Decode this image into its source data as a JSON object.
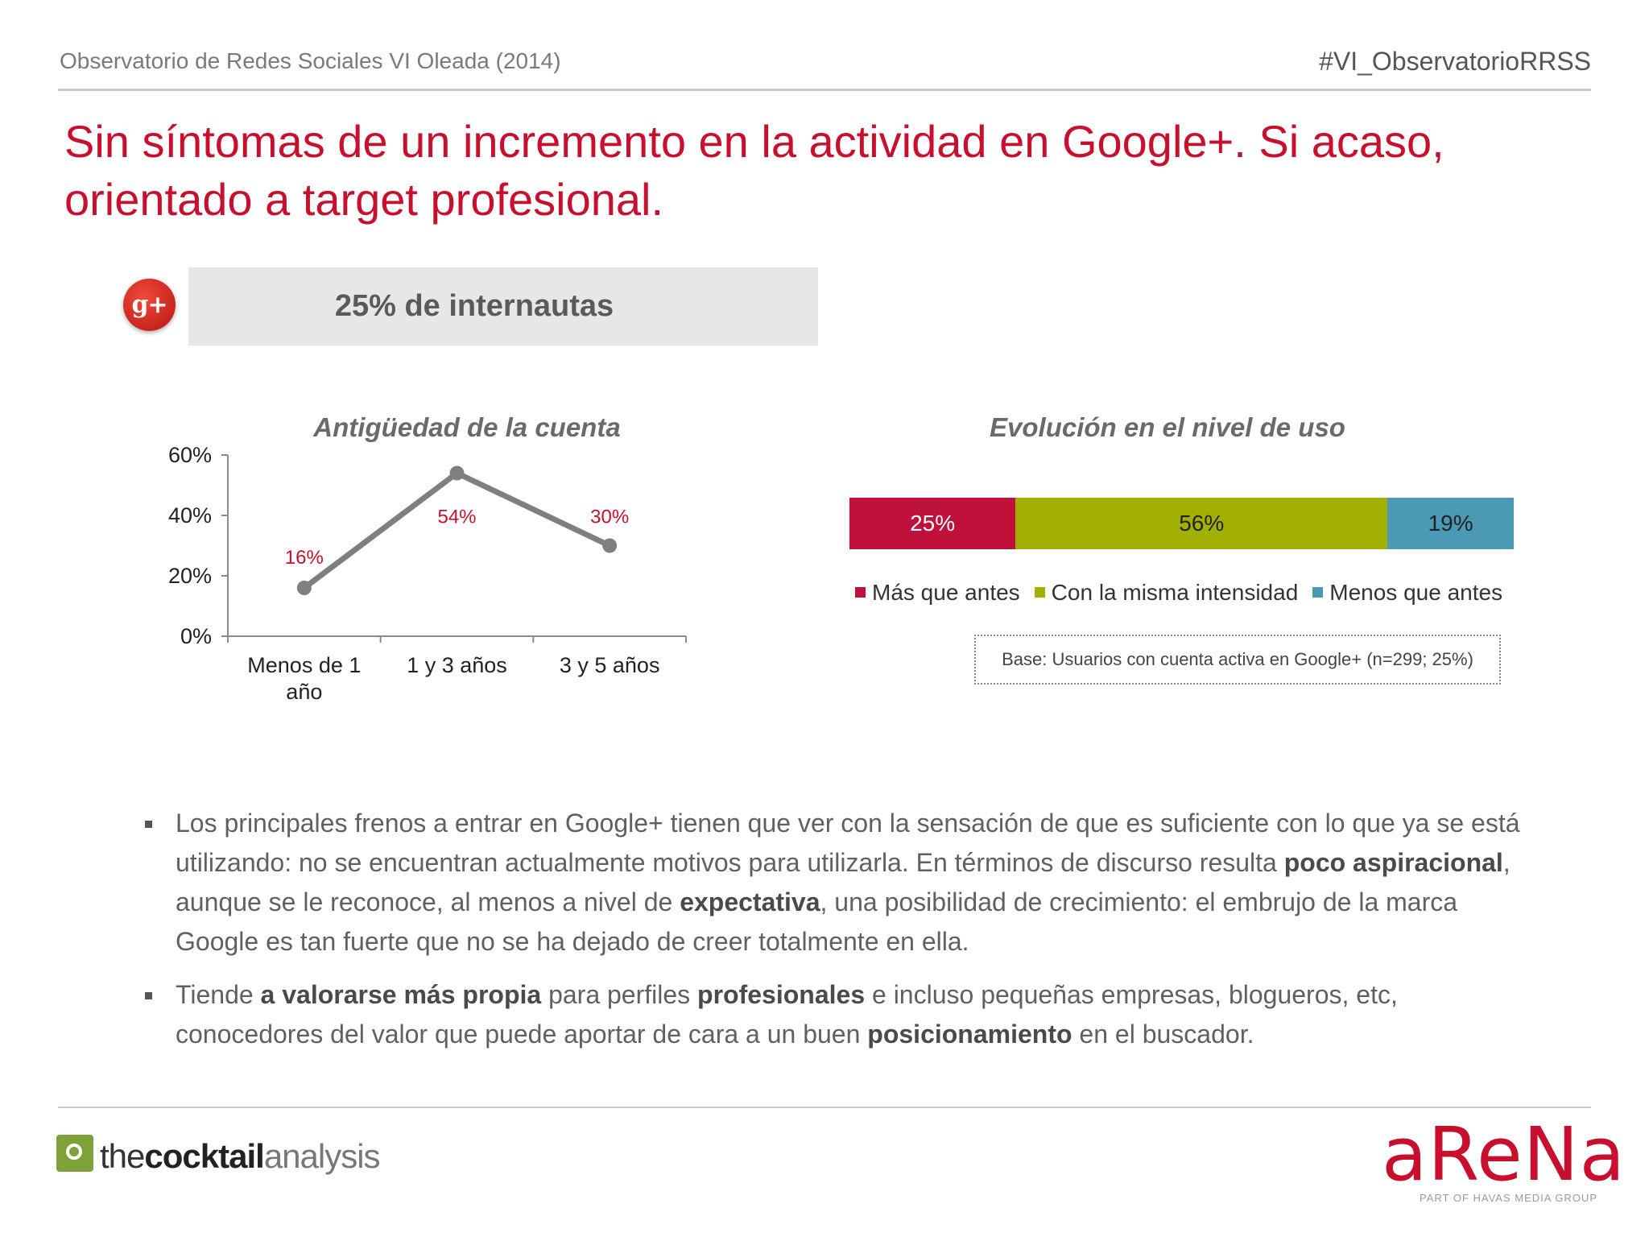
{
  "header": {
    "left_text": "Observatorio de Redes Sociales VI Oleada (2014)",
    "right_text": "#VI_ObservatorioRRSS"
  },
  "title": "Sin síntomas de un incremento en la actividad en Google+. Si acaso, orientado a target profesional.",
  "icon": {
    "name": "google-plus-icon",
    "glyph": "g+"
  },
  "stat": {
    "text": "25% de internautas"
  },
  "colors": {
    "accent": "#c8102e",
    "line": "#7f7f7f",
    "mas": "#c0103c",
    "misma": "#a2b002",
    "menos": "#4a99b5"
  },
  "chart_data": [
    {
      "type": "line",
      "title": "Antigüedad de la cuenta",
      "categories": [
        "Menos de 1 año",
        "1 y 3 años",
        "3 y 5 años"
      ],
      "category_lines": [
        [
          "Menos de 1",
          "año"
        ],
        [
          "1 y 3 años"
        ],
        [
          "3 y 5 años"
        ]
      ],
      "values": [
        16,
        54,
        30
      ],
      "data_labels": [
        "16%",
        "54%",
        "30%"
      ],
      "y_ticks": [
        "0%",
        "20%",
        "40%",
        "60%"
      ],
      "ylim": [
        0,
        60
      ],
      "grid": false,
      "legend": "none"
    },
    {
      "type": "bar",
      "orientation": "horizontal-stacked-100",
      "title": "Evolución en el nivel de uso",
      "series": [
        {
          "name": "Más que antes",
          "value": 25,
          "label": "25%"
        },
        {
          "name": "Con la misma intensidad",
          "value": 56,
          "label": "56%"
        },
        {
          "name": "Menos que antes",
          "value": 19,
          "label": "19%"
        }
      ],
      "legend": "bottom",
      "note": "Base: Usuarios con cuenta activa en Google+ (n=299; 25%)"
    }
  ],
  "bullets": [
    [
      {
        "t": "Los principales frenos a entrar en Google+ tienen que ver con la sensación de que es suficiente con lo que ya se está utilizando: no se encuentran actualmente motivos para utilizarla. En términos de discurso resulta ",
        "b": false
      },
      {
        "t": "poco aspiracional",
        "b": true
      },
      {
        "t": ", aunque se le reconoce, al menos a nivel de ",
        "b": false
      },
      {
        "t": "expectativa",
        "b": true
      },
      {
        "t": ", una posibilidad de crecimiento: el embrujo de la marca Google es tan fuerte que no se ha dejado de creer totalmente en ella.",
        "b": false
      }
    ],
    [
      {
        "t": "Tiende ",
        "b": false
      },
      {
        "t": "a valorarse más propia",
        "b": true
      },
      {
        "t": " para perfiles ",
        "b": false
      },
      {
        "t": "profesionales",
        "b": true
      },
      {
        "t": " e incluso pequeñas empresas, blogueros, etc, conocedores del valor que puede aportar de cara a un buen ",
        "b": false
      },
      {
        "t": "posicionamiento",
        "b": true
      },
      {
        "t": " en el buscador.",
        "b": false
      }
    ]
  ],
  "footer": {
    "cocktail": {
      "the": "the",
      "main": "cocktail",
      "sub": "analysis"
    },
    "arena": {
      "word": "aReNa",
      "sub": "PART OF HAVAS MEDIA GROUP"
    }
  }
}
